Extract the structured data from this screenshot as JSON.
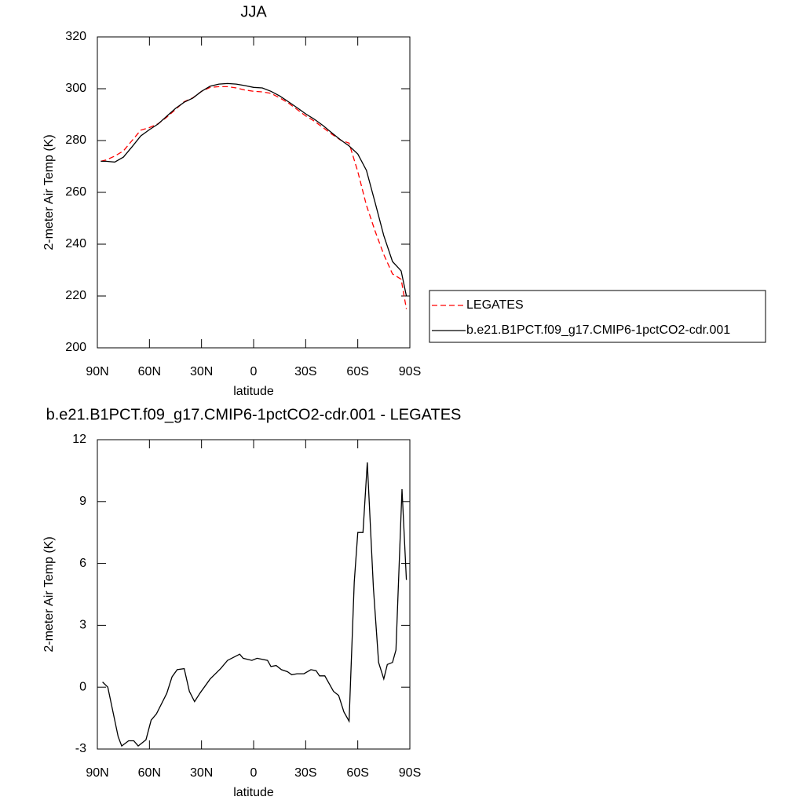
{
  "chart_data": [
    {
      "type": "line",
      "title": "JJA",
      "xlabel": "latitude",
      "ylabel": "2-meter Air Temp (K)",
      "xlim": [
        90,
        -90
      ],
      "xticks": [
        {
          "value": 90,
          "label": "90N"
        },
        {
          "value": 60,
          "label": "60N"
        },
        {
          "value": 30,
          "label": "30N"
        },
        0,
        {
          "value": -30,
          "label": "30S"
        },
        {
          "value": -60,
          "label": "60S"
        },
        {
          "value": -90,
          "label": "90S"
        }
      ],
      "ylim": [
        200,
        320
      ],
      "yticks": [
        200,
        220,
        240,
        260,
        280,
        300,
        320
      ],
      "legend": "right",
      "x": [
        88,
        85,
        80,
        75,
        70,
        65,
        60,
        55,
        50,
        45,
        40,
        35,
        30,
        25,
        20,
        15,
        10,
        5,
        0,
        -5,
        -10,
        -15,
        -20,
        -25,
        -30,
        -35,
        -40,
        -45,
        -50,
        -55,
        -60,
        -65,
        -70,
        -75,
        -80,
        -85,
        -88
      ],
      "series": [
        {
          "name": "LEGATES",
          "color": "#ff0000",
          "linestyle": "dashed",
          "values": [
            272,
            272.5,
            274,
            276,
            280,
            284,
            285,
            286.5,
            289,
            292,
            295,
            296.5,
            299,
            300.5,
            300.8,
            300.8,
            300.3,
            299.5,
            299,
            298.8,
            298.2,
            296.5,
            294.5,
            292,
            289.5,
            287.5,
            285,
            282.5,
            280.2,
            279,
            268,
            255,
            245,
            236,
            228.5,
            226.5,
            215
          ]
        },
        {
          "name": "b.e21.B1PCT.f09_g17.CMIP6-1pctCO2-cdr.001",
          "color": "#000000",
          "linestyle": "solid",
          "values": [
            272,
            272,
            271.7,
            273.6,
            277.6,
            281.8,
            284.2,
            286.4,
            289.4,
            292.4,
            294.8,
            296.4,
            299,
            301,
            301.8,
            302,
            301.8,
            301.2,
            300.5,
            300.3,
            299,
            297.2,
            295,
            292.7,
            290.3,
            288.2,
            285.8,
            283,
            280.3,
            277.9,
            274.8,
            268.5,
            256,
            243.3,
            233.3,
            229.7,
            220
          ]
        }
      ]
    },
    {
      "type": "line",
      "title": "b.e21.B1PCT.f09_g17.CMIP6-1pctCO2-cdr.001 - LEGATES",
      "xlabel": "latitude",
      "ylabel": "2-meter Air Temp (K)",
      "xlim": [
        90,
        -90
      ],
      "xticks": [
        {
          "value": 90,
          "label": "90N"
        },
        {
          "value": 60,
          "label": "60N"
        },
        {
          "value": 30,
          "label": "30N"
        },
        0,
        {
          "value": -30,
          "label": "30S"
        },
        {
          "value": -60,
          "label": "60S"
        },
        {
          "value": -90,
          "label": "90S"
        }
      ],
      "ylim": [
        -3,
        12
      ],
      "yticks": [
        -3,
        0,
        3,
        6,
        9,
        12
      ],
      "color": "#000000",
      "x": [
        87,
        84,
        78,
        76,
        72,
        69,
        66.5,
        62,
        59,
        56,
        50,
        47,
        44,
        40,
        37,
        34,
        31,
        25,
        19,
        15,
        8,
        6,
        1,
        -2,
        -8,
        -10,
        -13,
        -16,
        -19.5,
        -22,
        -25,
        -29,
        -33,
        -36,
        -38,
        -41,
        -44,
        -46,
        -49,
        -52,
        -55,
        -58,
        -60,
        -63,
        -65.5,
        -69,
        -72,
        -75,
        -77,
        -80,
        -82,
        -85.5,
        -88
      ],
      "values": [
        0.25,
        0,
        -2.4,
        -2.85,
        -2.6,
        -2.6,
        -2.85,
        -2.55,
        -1.6,
        -1.3,
        -0.3,
        0.5,
        0.85,
        0.9,
        -0.2,
        -0.7,
        -0.3,
        0.4,
        0.9,
        1.3,
        1.6,
        1.4,
        1.3,
        1.4,
        1.3,
        1.0,
        1.05,
        0.85,
        0.75,
        0.6,
        0.65,
        0.65,
        0.85,
        0.8,
        0.55,
        0.55,
        0.1,
        -0.2,
        -0.4,
        -1.2,
        -1.65,
        5.1,
        7.5,
        7.5,
        10.9,
        4.8,
        1.2,
        0.4,
        1.1,
        1.2,
        1.8,
        9.6,
        5.2
      ]
    }
  ]
}
